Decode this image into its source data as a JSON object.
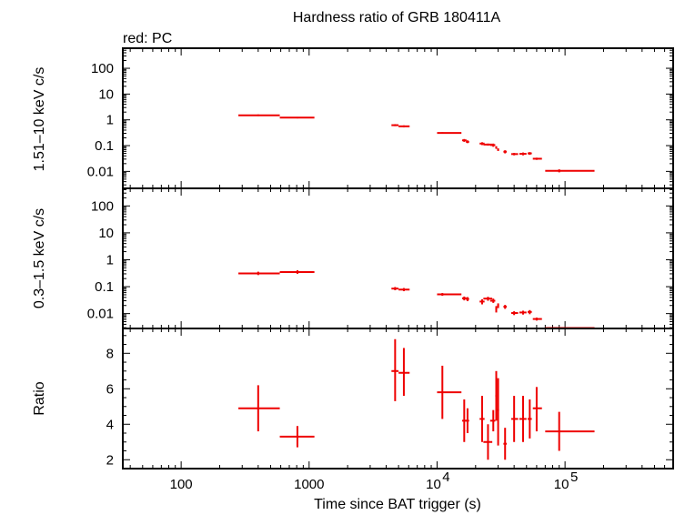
{
  "chart_data": {
    "type": "scatter",
    "title": "Hardness ratio of GRB 180411A",
    "subtitle": "red: PC",
    "xlabel": "Time since BAT trigger (s)",
    "x_scale": "log",
    "xlim": [
      35,
      700000
    ],
    "x_ticks": [
      {
        "value": 100,
        "label": "100",
        "sup": ""
      },
      {
        "value": 1000,
        "label": "1000",
        "sup": ""
      },
      {
        "value": 10000,
        "label": "10",
        "sup": "4"
      },
      {
        "value": 100000,
        "label": "10",
        "sup": "5"
      }
    ],
    "panels": [
      {
        "name": "hard",
        "ylabel": "1.51–10 keV c/s",
        "y_scale": "log",
        "ylim": [
          0.0022,
          600
        ],
        "y_ticks": [
          {
            "value": 100,
            "label": "100"
          },
          {
            "value": 10,
            "label": "10"
          },
          {
            "value": 1,
            "label": "1"
          },
          {
            "value": 0.1,
            "label": "0.1"
          },
          {
            "value": 0.01,
            "label": "0.01"
          }
        ],
        "points": [
          {
            "x": 400,
            "xlo": 280,
            "xhi": 590,
            "y": 1.5,
            "ylo": 1.4,
            "yhi": 1.62
          },
          {
            "x": 810,
            "xlo": 590,
            "xhi": 1100,
            "y": 1.22,
            "ylo": 1.14,
            "yhi": 1.3
          },
          {
            "x": 4700,
            "xlo": 4400,
            "xhi": 5000,
            "y": 0.62,
            "ylo": 0.57,
            "yhi": 0.68
          },
          {
            "x": 5500,
            "xlo": 5000,
            "xhi": 6100,
            "y": 0.56,
            "ylo": 0.51,
            "yhi": 0.61
          },
          {
            "x": 11000,
            "xlo": 10000,
            "xhi": 15500,
            "y": 0.31,
            "ylo": 0.29,
            "yhi": 0.33
          },
          {
            "x": 16300,
            "xlo": 15700,
            "xhi": 17000,
            "y": 0.16,
            "ylo": 0.14,
            "yhi": 0.18
          },
          {
            "x": 17300,
            "xlo": 16800,
            "xhi": 17800,
            "y": 0.14,
            "ylo": 0.125,
            "yhi": 0.16
          },
          {
            "x": 22500,
            "xlo": 21500,
            "xhi": 23500,
            "y": 0.12,
            "ylo": 0.105,
            "yhi": 0.135
          },
          {
            "x": 25000,
            "xlo": 23000,
            "xhi": 27000,
            "y": 0.11,
            "ylo": 0.1,
            "yhi": 0.12
          },
          {
            "x": 27500,
            "xlo": 26000,
            "xhi": 28500,
            "y": 0.105,
            "ylo": 0.09,
            "yhi": 0.12
          },
          {
            "x": 29000,
            "xlo": 28500,
            "xhi": 29500,
            "y": 0.085,
            "ylo": 0.075,
            "yhi": 0.095
          },
          {
            "x": 30000,
            "xlo": 29500,
            "xhi": 30500,
            "y": 0.07,
            "ylo": 0.062,
            "yhi": 0.078
          },
          {
            "x": 34000,
            "xlo": 33000,
            "xhi": 35000,
            "y": 0.058,
            "ylo": 0.05,
            "yhi": 0.066
          },
          {
            "x": 40000,
            "xlo": 38000,
            "xhi": 43000,
            "y": 0.047,
            "ylo": 0.042,
            "yhi": 0.052
          },
          {
            "x": 47000,
            "xlo": 44000,
            "xhi": 50000,
            "y": 0.048,
            "ylo": 0.042,
            "yhi": 0.054
          },
          {
            "x": 53000,
            "xlo": 51000,
            "xhi": 55000,
            "y": 0.05,
            "ylo": 0.044,
            "yhi": 0.056
          },
          {
            "x": 60000,
            "xlo": 56000,
            "xhi": 66000,
            "y": 0.031,
            "ylo": 0.028,
            "yhi": 0.034
          },
          {
            "x": 90000,
            "xlo": 70000,
            "xhi": 170000,
            "y": 0.0105,
            "ylo": 0.0092,
            "yhi": 0.012
          }
        ]
      },
      {
        "name": "soft",
        "ylabel": "0.3–1.5 keV c/s",
        "y_scale": "log",
        "ylim": [
          0.0028,
          450
        ],
        "y_ticks": [
          {
            "value": 100,
            "label": "100"
          },
          {
            "value": 10,
            "label": "10"
          },
          {
            "value": 1,
            "label": "1"
          },
          {
            "value": 0.1,
            "label": "0.1"
          },
          {
            "value": 0.01,
            "label": "0.01"
          }
        ],
        "points": [
          {
            "x": 400,
            "xlo": 280,
            "xhi": 590,
            "y": 0.31,
            "ylo": 0.27,
            "yhi": 0.36
          },
          {
            "x": 810,
            "xlo": 590,
            "xhi": 1100,
            "y": 0.35,
            "ylo": 0.3,
            "yhi": 0.41
          },
          {
            "x": 4700,
            "xlo": 4400,
            "xhi": 5000,
            "y": 0.085,
            "ylo": 0.074,
            "yhi": 0.097
          },
          {
            "x": 5500,
            "xlo": 5000,
            "xhi": 6100,
            "y": 0.078,
            "ylo": 0.068,
            "yhi": 0.089
          },
          {
            "x": 11000,
            "xlo": 10000,
            "xhi": 15500,
            "y": 0.052,
            "ylo": 0.046,
            "yhi": 0.058
          },
          {
            "x": 16300,
            "xlo": 15700,
            "xhi": 17000,
            "y": 0.037,
            "ylo": 0.031,
            "yhi": 0.043
          },
          {
            "x": 17300,
            "xlo": 16800,
            "xhi": 17800,
            "y": 0.035,
            "ylo": 0.029,
            "yhi": 0.041
          },
          {
            "x": 22500,
            "xlo": 21500,
            "xhi": 23500,
            "y": 0.028,
            "ylo": 0.022,
            "yhi": 0.034
          },
          {
            "x": 25000,
            "xlo": 23000,
            "xhi": 27000,
            "y": 0.036,
            "ylo": 0.03,
            "yhi": 0.042
          },
          {
            "x": 27500,
            "xlo": 26000,
            "xhi": 28500,
            "y": 0.03,
            "ylo": 0.025,
            "yhi": 0.036
          },
          {
            "x": 29000,
            "xlo": 28500,
            "xhi": 29500,
            "y": 0.015,
            "ylo": 0.011,
            "yhi": 0.019
          },
          {
            "x": 30000,
            "xlo": 29500,
            "xhi": 30500,
            "y": 0.02,
            "ylo": 0.016,
            "yhi": 0.024
          },
          {
            "x": 34000,
            "xlo": 33000,
            "xhi": 35000,
            "y": 0.018,
            "ylo": 0.015,
            "yhi": 0.021
          },
          {
            "x": 40000,
            "xlo": 38000,
            "xhi": 43000,
            "y": 0.0105,
            "ylo": 0.0088,
            "yhi": 0.0122
          },
          {
            "x": 47000,
            "xlo": 44000,
            "xhi": 50000,
            "y": 0.011,
            "ylo": 0.0092,
            "yhi": 0.0128
          },
          {
            "x": 53000,
            "xlo": 51000,
            "xhi": 55000,
            "y": 0.0115,
            "ylo": 0.0095,
            "yhi": 0.0135
          },
          {
            "x": 60000,
            "xlo": 56000,
            "xhi": 66000,
            "y": 0.0063,
            "ylo": 0.0055,
            "yhi": 0.0071
          },
          {
            "x": 90000,
            "xlo": 70000,
            "xhi": 170000,
            "y": 0.0029,
            "ylo": 0.0027,
            "yhi": 0.0031
          }
        ]
      },
      {
        "name": "ratio",
        "ylabel": "Ratio",
        "y_scale": "linear",
        "ylim": [
          1.5,
          9.4
        ],
        "y_ticks": [
          {
            "value": 2,
            "label": "2"
          },
          {
            "value": 4,
            "label": "4"
          },
          {
            "value": 6,
            "label": "6"
          },
          {
            "value": 8,
            "label": "8"
          }
        ],
        "points": [
          {
            "x": 400,
            "xlo": 280,
            "xhi": 590,
            "y": 4.9,
            "ylo": 3.6,
            "yhi": 6.2
          },
          {
            "x": 810,
            "xlo": 590,
            "xhi": 1100,
            "y": 3.3,
            "ylo": 2.7,
            "yhi": 3.9
          },
          {
            "x": 4700,
            "xlo": 4400,
            "xhi": 5000,
            "y": 7.0,
            "ylo": 5.3,
            "yhi": 8.8
          },
          {
            "x": 5500,
            "xlo": 5000,
            "xhi": 6100,
            "y": 6.9,
            "ylo": 5.6,
            "yhi": 8.3
          },
          {
            "x": 11000,
            "xlo": 10000,
            "xhi": 15500,
            "y": 5.8,
            "ylo": 4.3,
            "yhi": 7.3
          },
          {
            "x": 16300,
            "xlo": 15700,
            "xhi": 17000,
            "y": 4.2,
            "ylo": 3.0,
            "yhi": 5.4
          },
          {
            "x": 17300,
            "xlo": 16800,
            "xhi": 17800,
            "y": 4.2,
            "ylo": 3.5,
            "yhi": 4.9
          },
          {
            "x": 22500,
            "xlo": 21500,
            "xhi": 23500,
            "y": 4.3,
            "ylo": 3.0,
            "yhi": 5.6
          },
          {
            "x": 25000,
            "xlo": 23000,
            "xhi": 27000,
            "y": 3.0,
            "ylo": 2.0,
            "yhi": 4.0
          },
          {
            "x": 27500,
            "xlo": 26000,
            "xhi": 28500,
            "y": 4.2,
            "ylo": 3.6,
            "yhi": 4.8
          },
          {
            "x": 29000,
            "xlo": 28500,
            "xhi": 29500,
            "y": 5.6,
            "ylo": 4.2,
            "yhi": 7.0
          },
          {
            "x": 30000,
            "xlo": 29500,
            "xhi": 30500,
            "y": 4.8,
            "ylo": 2.8,
            "yhi": 6.6
          },
          {
            "x": 34000,
            "xlo": 33000,
            "xhi": 35000,
            "y": 2.9,
            "ylo": 2.0,
            "yhi": 3.8
          },
          {
            "x": 40000,
            "xlo": 38000,
            "xhi": 43000,
            "y": 4.3,
            "ylo": 3.0,
            "yhi": 5.6
          },
          {
            "x": 47000,
            "xlo": 44000,
            "xhi": 50000,
            "y": 4.3,
            "ylo": 3.0,
            "yhi": 5.6
          },
          {
            "x": 53000,
            "xlo": 51000,
            "xhi": 55000,
            "y": 4.3,
            "ylo": 3.2,
            "yhi": 5.4
          },
          {
            "x": 60000,
            "xlo": 56000,
            "xhi": 66000,
            "y": 4.9,
            "ylo": 3.6,
            "yhi": 6.1
          },
          {
            "x": 90000,
            "xlo": 70000,
            "xhi": 170000,
            "y": 3.6,
            "ylo": 2.5,
            "yhi": 4.7
          }
        ]
      }
    ],
    "colors": {
      "series": "#ee0000",
      "axes": "#000000"
    }
  }
}
